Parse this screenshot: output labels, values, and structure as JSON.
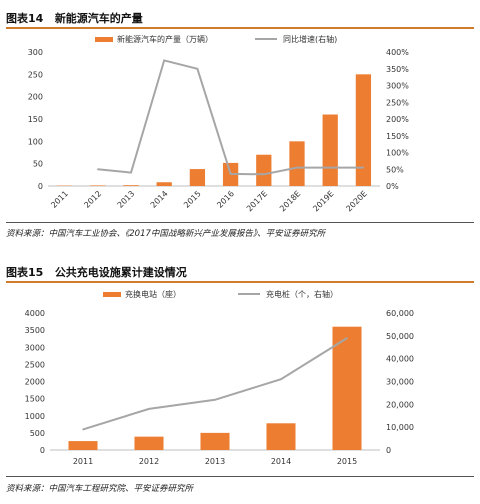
{
  "figure14": {
    "label": "图表14",
    "title": "新能源汽车的产量",
    "source": "资料来源：中国汽车工业协会、《2017中国战略新兴产业发展报告》、平安证券研究所",
    "chart_data": {
      "type": "bar",
      "categories": [
        "2011",
        "2012",
        "2013",
        "2014",
        "2015",
        "2016",
        "2017E",
        "2018E",
        "2019E",
        "2020E"
      ],
      "series": [
        {
          "name": "新能源汽车的产量（万辆）",
          "type": "bar",
          "axis": "left",
          "color": "#ed7d31",
          "values": [
            0.8,
            1.3,
            1.8,
            8.4,
            37.9,
            51.7,
            70,
            100,
            160,
            250
          ]
        },
        {
          "name": "同比增速(右轴)",
          "type": "line",
          "axis": "right",
          "color": "#a6a6a6",
          "values": [
            null,
            50,
            40,
            375,
            350,
            36,
            35,
            55,
            55,
            55
          ]
        }
      ],
      "ylim": [
        0,
        300
      ],
      "yticks": [
        "0",
        "50",
        "100",
        "150",
        "200",
        "250",
        "300"
      ],
      "y2lim": [
        0,
        400
      ],
      "y2ticks": [
        "0%",
        "50%",
        "100%",
        "150%",
        "200%",
        "250%",
        "300%",
        "350%",
        "400%"
      ],
      "legend_position": "top"
    }
  },
  "figure15": {
    "label": "图表15",
    "title": "公共充电设施累计建设情况",
    "source": "资料来源：中国汽车工程研究院、平安证券研究所",
    "chart_data": {
      "type": "bar",
      "categories": [
        "2011",
        "2012",
        "2013",
        "2014",
        "2015"
      ],
      "series": [
        {
          "name": "充换电站（座）",
          "type": "bar",
          "axis": "left",
          "color": "#ed7d31",
          "values": [
            260,
            390,
            500,
            780,
            3600
          ]
        },
        {
          "name": "充电桩（个，右轴）",
          "type": "line",
          "axis": "right",
          "color": "#a6a6a6",
          "values": [
            9000,
            18000,
            22000,
            31000,
            49000
          ]
        }
      ],
      "ylim": [
        0,
        4000
      ],
      "yticks": [
        "0",
        "500",
        "1000",
        "1500",
        "2000",
        "2500",
        "3000",
        "3500",
        "4000"
      ],
      "y2lim": [
        0,
        60000
      ],
      "y2ticks": [
        "0",
        "10,000",
        "20,000",
        "30,000",
        "40,000",
        "50,000",
        "60,000"
      ],
      "legend_position": "top"
    }
  }
}
